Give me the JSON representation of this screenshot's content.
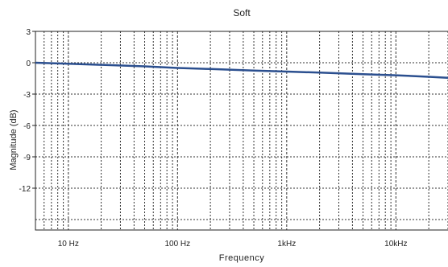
{
  "chart_data": {
    "type": "line",
    "title": "Soft",
    "xlabel": "Frequency",
    "ylabel": "Magnitude (dB)",
    "x_scale": "log",
    "xlim": [
      5,
      30000
    ],
    "ylim": [
      -16,
      3
    ],
    "x_ticks": [
      {
        "value": 10,
        "label": "10 Hz"
      },
      {
        "value": 100,
        "label": "100 Hz"
      },
      {
        "value": 1000,
        "label": "1kHz"
      },
      {
        "value": 10000,
        "label": "10kHz"
      }
    ],
    "y_ticks": [
      {
        "value": 3,
        "label": "3"
      },
      {
        "value": 0,
        "label": "0"
      },
      {
        "value": -3,
        "label": "-3"
      },
      {
        "value": -6,
        "label": "-6"
      },
      {
        "value": -9,
        "label": "-9"
      },
      {
        "value": -12,
        "label": "-12"
      }
    ],
    "grid": true,
    "line_color": "#2b4f8f",
    "series": [
      {
        "x": [
          5,
          10,
          20,
          50,
          100,
          200,
          500,
          1000,
          2000,
          5000,
          10000,
          20000,
          30000
        ],
        "y": [
          0.0,
          -0.1,
          -0.2,
          -0.35,
          -0.5,
          -0.6,
          -0.75,
          -0.85,
          -0.95,
          -1.1,
          -1.2,
          -1.35,
          -1.45
        ]
      }
    ]
  }
}
